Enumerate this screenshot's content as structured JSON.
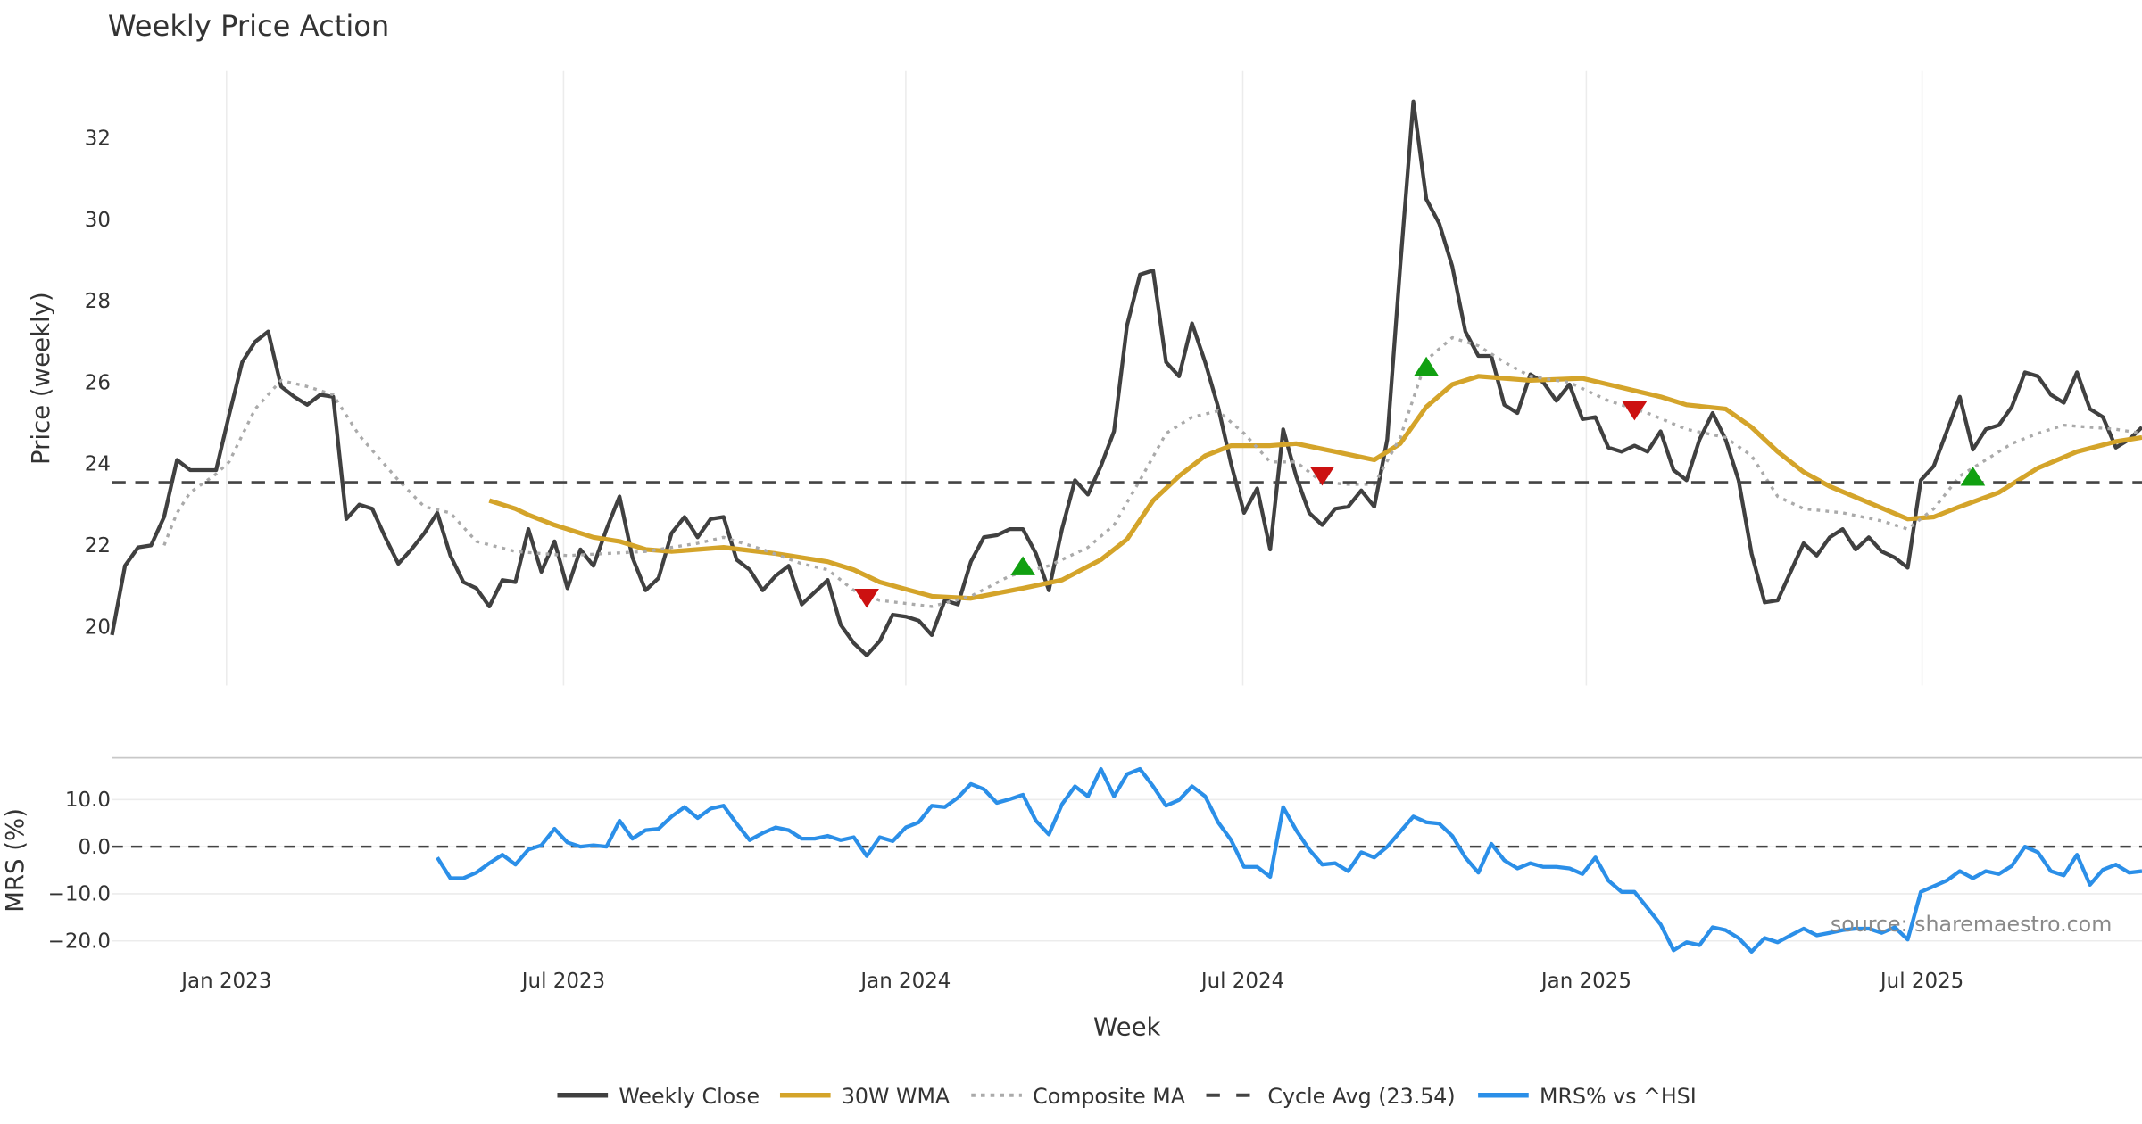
{
  "chart_data": [
    {
      "type": "line",
      "title": "Weekly Price Action",
      "xlabel": "Week",
      "ylabel": "Price (weekly)",
      "ylim": [
        18.5,
        33.6
      ],
      "yticks": [
        20,
        22,
        24,
        26,
        28,
        30,
        32
      ],
      "x_unit": "week index",
      "xlim": [
        0,
        156
      ],
      "xticks": [
        {
          "x": 8.8,
          "label": "Jan 2023"
        },
        {
          "x": 34.7,
          "label": "Jul 2023"
        },
        {
          "x": 61.0,
          "label": "Jan 2024"
        },
        {
          "x": 86.9,
          "label": "Jul 2024"
        },
        {
          "x": 113.3,
          "label": "Jan 2025"
        },
        {
          "x": 139.1,
          "label": "Jul 2025"
        }
      ],
      "grid": "vertical",
      "series": [
        {
          "name": "Weekly Close",
          "color": "#404040",
          "style": "solid",
          "start": 0,
          "values": [
            19.8,
            21.5,
            21.95,
            22.0,
            22.7,
            24.1,
            23.85,
            23.85,
            23.85,
            25.2,
            26.5,
            27.0,
            27.25,
            25.9,
            25.65,
            25.45,
            25.7,
            25.65,
            22.65,
            23.0,
            22.9,
            22.2,
            21.55,
            21.9,
            22.3,
            22.8,
            21.75,
            21.1,
            20.95,
            20.5,
            21.15,
            21.1,
            22.4,
            21.35,
            22.1,
            20.95,
            21.9,
            21.5,
            22.4,
            23.2,
            21.7,
            20.9,
            21.2,
            22.3,
            22.7,
            22.2,
            22.65,
            22.7,
            21.65,
            21.4,
            20.9,
            21.25,
            21.5,
            20.55,
            20.85,
            21.15,
            20.05,
            19.6,
            19.3,
            19.65,
            20.3,
            20.25,
            20.15,
            19.8,
            20.65,
            20.55,
            21.6,
            22.2,
            22.25,
            22.4,
            22.4,
            21.8,
            20.9,
            22.4,
            23.6,
            23.25,
            23.95,
            24.8,
            27.4,
            28.65,
            28.75,
            26.5,
            26.15,
            27.45,
            26.5,
            25.4,
            24.0,
            22.8,
            23.4,
            21.9,
            24.85,
            23.7,
            22.8,
            22.5,
            22.9,
            22.95,
            23.35,
            22.95,
            24.6,
            28.85,
            32.9,
            30.5,
            29.9,
            28.85,
            27.25,
            26.65,
            26.65,
            25.45,
            25.25,
            26.2,
            26.0,
            25.55,
            25.95,
            25.1,
            25.15,
            24.4,
            24.3,
            24.45,
            24.3,
            24.8,
            23.85,
            23.6,
            24.6,
            25.25,
            24.6,
            23.6,
            21.8,
            20.6,
            20.65,
            21.35,
            22.05,
            21.75,
            22.2,
            22.4,
            21.9,
            22.2,
            21.85,
            21.7,
            21.45,
            23.6,
            23.95,
            24.8,
            25.65,
            24.35,
            24.85,
            24.95,
            25.4,
            26.25,
            26.15,
            25.7,
            25.5,
            26.25,
            25.35,
            25.15,
            24.4,
            24.6,
            24.9
          ]
        },
        {
          "name": "30W WMA",
          "color": "#d4a42a",
          "style": "solid",
          "points": [
            [
              29,
              23.1
            ],
            [
              31,
              22.9
            ],
            [
              32,
              22.75
            ],
            [
              34,
              22.5
            ],
            [
              37,
              22.2
            ],
            [
              39,
              22.1
            ],
            [
              41,
              21.9
            ],
            [
              43,
              21.85
            ],
            [
              47,
              21.95
            ],
            [
              51,
              21.8
            ],
            [
              55,
              21.6
            ],
            [
              57,
              21.4
            ],
            [
              59,
              21.1
            ],
            [
              63,
              20.75
            ],
            [
              66,
              20.7
            ],
            [
              70,
              20.95
            ],
            [
              73,
              21.15
            ],
            [
              76,
              21.65
            ],
            [
              78,
              22.15
            ],
            [
              80,
              23.1
            ],
            [
              82,
              23.7
            ],
            [
              84,
              24.2
            ],
            [
              86,
              24.45
            ],
            [
              89,
              24.45
            ],
            [
              91,
              24.5
            ],
            [
              94,
              24.3
            ],
            [
              97,
              24.1
            ],
            [
              99,
              24.5
            ],
            [
              101,
              25.4
            ],
            [
              103,
              25.95
            ],
            [
              105,
              26.15
            ],
            [
              107,
              26.1
            ],
            [
              109,
              26.05
            ],
            [
              113,
              26.1
            ],
            [
              115,
              25.95
            ],
            [
              119,
              25.65
            ],
            [
              121,
              25.45
            ],
            [
              124,
              25.35
            ],
            [
              126,
              24.9
            ],
            [
              128,
              24.3
            ],
            [
              130,
              23.8
            ],
            [
              132,
              23.45
            ],
            [
              135,
              23.05
            ],
            [
              138,
              22.65
            ],
            [
              140,
              22.7
            ],
            [
              142,
              22.95
            ],
            [
              145,
              23.3
            ],
            [
              148,
              23.9
            ],
            [
              151,
              24.3
            ],
            [
              154,
              24.55
            ],
            [
              156,
              24.65
            ]
          ]
        },
        {
          "name": "Composite MA",
          "color": "#aaaaaa",
          "style": "dotted",
          "points": [
            [
              4,
              22.0
            ],
            [
              5,
              22.8
            ],
            [
              6,
              23.3
            ],
            [
              8,
              23.75
            ],
            [
              9,
              24.05
            ],
            [
              11,
              25.35
            ],
            [
              13,
              26.05
            ],
            [
              15,
              25.9
            ],
            [
              17,
              25.7
            ],
            [
              19,
              24.7
            ],
            [
              22,
              23.6
            ],
            [
              24,
              22.95
            ],
            [
              26,
              22.8
            ],
            [
              28,
              22.1
            ],
            [
              31,
              21.85
            ],
            [
              35,
              21.75
            ],
            [
              38,
              21.8
            ],
            [
              41,
              21.85
            ],
            [
              45,
              22.05
            ],
            [
              47,
              22.2
            ],
            [
              50,
              21.9
            ],
            [
              53,
              21.55
            ],
            [
              55,
              21.4
            ],
            [
              57,
              20.9
            ],
            [
              59,
              20.65
            ],
            [
              63,
              20.5
            ],
            [
              66,
              20.75
            ],
            [
              69,
              21.25
            ],
            [
              72,
              21.5
            ],
            [
              75,
              21.95
            ],
            [
              77,
              22.5
            ],
            [
              79,
              23.6
            ],
            [
              81,
              24.75
            ],
            [
              83,
              25.15
            ],
            [
              85,
              25.3
            ],
            [
              87,
              24.75
            ],
            [
              89,
              24.05
            ],
            [
              91,
              24.05
            ],
            [
              93,
              23.55
            ],
            [
              95,
              23.5
            ],
            [
              97,
              23.5
            ],
            [
              99,
              24.65
            ],
            [
              101,
              26.55
            ],
            [
              103,
              27.1
            ],
            [
              105,
              26.9
            ],
            [
              107,
              26.5
            ],
            [
              109,
              26.15
            ],
            [
              112,
              26.0
            ],
            [
              115,
              25.55
            ],
            [
              118,
              25.25
            ],
            [
              121,
              24.85
            ],
            [
              124,
              24.65
            ],
            [
              126,
              24.2
            ],
            [
              128,
              23.2
            ],
            [
              130,
              22.9
            ],
            [
              133,
              22.8
            ],
            [
              136,
              22.6
            ],
            [
              138,
              22.4
            ],
            [
              140,
              22.9
            ],
            [
              142,
              23.7
            ],
            [
              144,
              24.1
            ],
            [
              146,
              24.5
            ],
            [
              148,
              24.75
            ],
            [
              150,
              24.95
            ],
            [
              152,
              24.9
            ],
            [
              154,
              24.85
            ],
            [
              156,
              24.75
            ]
          ]
        },
        {
          "name": "Cycle Avg (23.54)",
          "color": "#444444",
          "style": "dashed",
          "value": 23.54
        }
      ],
      "signals": {
        "sell": {
          "color": "#cc1111",
          "points": [
            [
              58,
              20.7
            ],
            [
              93,
              23.7
            ],
            [
              117,
              25.3
            ]
          ]
        },
        "buy": {
          "color": "#11a011",
          "points": [
            [
              70,
              21.5
            ],
            [
              101,
              26.4
            ],
            [
              143,
              23.7
            ]
          ]
        }
      }
    },
    {
      "type": "line",
      "ylabel": "MRS (%)",
      "ylim": [
        -23.5,
        19
      ],
      "yticks": [
        {
          "v": 10,
          "label": "10.0"
        },
        {
          "v": 0,
          "label": "0.0"
        },
        {
          "v": -10,
          "label": "−10.0"
        },
        {
          "v": -20,
          "label": "−20.0"
        }
      ],
      "grid": "horizontal",
      "zero_line": 0,
      "series": [
        {
          "name": "MRS% vs ^HSI",
          "color": "#2b8fe8",
          "style": "solid",
          "start": 25,
          "values": [
            -2.3,
            -6.7,
            -6.7,
            -5.5,
            -3.5,
            -1.7,
            -3.8,
            -0.6,
            0.3,
            3.8,
            0.9,
            0,
            0.3,
            0,
            5.5,
            1.7,
            3.5,
            3.8,
            6.4,
            8.4,
            6.1,
            8.1,
            8.7,
            4.9,
            1.4,
            2.9,
            4.1,
            3.5,
            1.7,
            1.7,
            2.3,
            1.4,
            2.0,
            -2.0,
            2.0,
            1.2,
            4.1,
            5.2,
            8.7,
            8.4,
            10.4,
            13.3,
            12.2,
            9.3,
            10.1,
            11.0,
            5.5,
            2.6,
            9.0,
            12.8,
            10.7,
            16.5,
            10.7,
            15.4,
            16.5,
            12.8,
            8.7,
            9.9,
            12.8,
            10.7,
            5.2,
            1.4,
            -4.3,
            -4.3,
            -6.4,
            8.4,
            3.5,
            -0.6,
            -3.8,
            -3.5,
            -5.2,
            -1.2,
            -2.3,
            0,
            3.2,
            6.4,
            5.2,
            4.9,
            2.3,
            -2.3,
            -5.5,
            0.6,
            -2.9,
            -4.6,
            -3.5,
            -4.3,
            -4.3,
            -4.6,
            -5.8,
            -2.3,
            -7.2,
            -9.6,
            -9.6,
            -13.0,
            -16.5,
            -22.0,
            -20.3,
            -20.9,
            -17.1,
            -17.7,
            -19.4,
            -22.3,
            -19.4,
            -20.3,
            -18.8,
            -17.4,
            -18.8,
            -18.3,
            -17.7,
            -17.4,
            -17.4,
            -18.3,
            -17.1,
            -19.7,
            -9.6,
            -8.4,
            -7.2,
            -5.2,
            -6.7,
            -5.2,
            -5.8,
            -4.1,
            0,
            -1.2,
            -5.2,
            -6.1,
            -1.7,
            -8.1,
            -4.9,
            -3.8,
            -5.5,
            -5.2
          ]
        }
      ],
      "annotation": "source: sharemaestro.com"
    }
  ],
  "legend": {
    "placement": "bottom",
    "items": [
      {
        "label": "Weekly Close",
        "color": "#404040",
        "style": "solid"
      },
      {
        "label": "30W WMA",
        "color": "#d4a42a",
        "style": "solid"
      },
      {
        "label": "Composite MA",
        "color": "#aaaaaa",
        "style": "dotted"
      },
      {
        "label": "Cycle Avg (23.54)",
        "color": "#444444",
        "style": "dashed"
      },
      {
        "label": "MRS% vs ^HSI",
        "color": "#2b8fe8",
        "style": "solid"
      }
    ]
  }
}
